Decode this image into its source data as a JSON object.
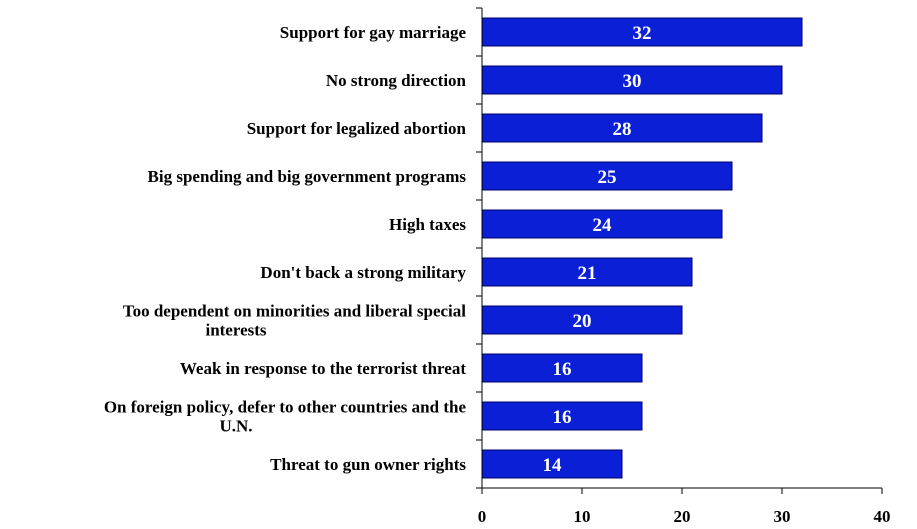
{
  "chart_data": {
    "type": "bar",
    "orientation": "horizontal",
    "categories": [
      [
        "Support for gay marriage"
      ],
      [
        "No strong direction"
      ],
      [
        "Support for legalized abortion"
      ],
      [
        "Big spending and big government programs"
      ],
      [
        "High taxes"
      ],
      [
        "Don't back a strong military"
      ],
      [
        "Too dependent on minorities and liberal special",
        "interests"
      ],
      [
        "Weak in response to the terrorist threat"
      ],
      [
        "On foreign policy, defer to other countries and the",
        "U.N."
      ],
      [
        "Threat to gun owner rights"
      ]
    ],
    "values": [
      32,
      30,
      28,
      25,
      24,
      21,
      20,
      16,
      16,
      14
    ],
    "data_labels": [
      "32",
      "30",
      "28",
      "25",
      "24",
      "21",
      "20",
      "16",
      "16",
      "14"
    ],
    "xlim": [
      0,
      40
    ],
    "x_ticks": [
      0,
      10,
      20,
      30,
      40
    ],
    "x_tick_labels": [
      "0",
      "10",
      "20",
      "30",
      "40"
    ],
    "grid": false,
    "colors": {
      "bar_fill": "#0a1fd6",
      "bar_stroke": "#000066",
      "axis": "#000000",
      "data_label": "#ffffff"
    }
  }
}
